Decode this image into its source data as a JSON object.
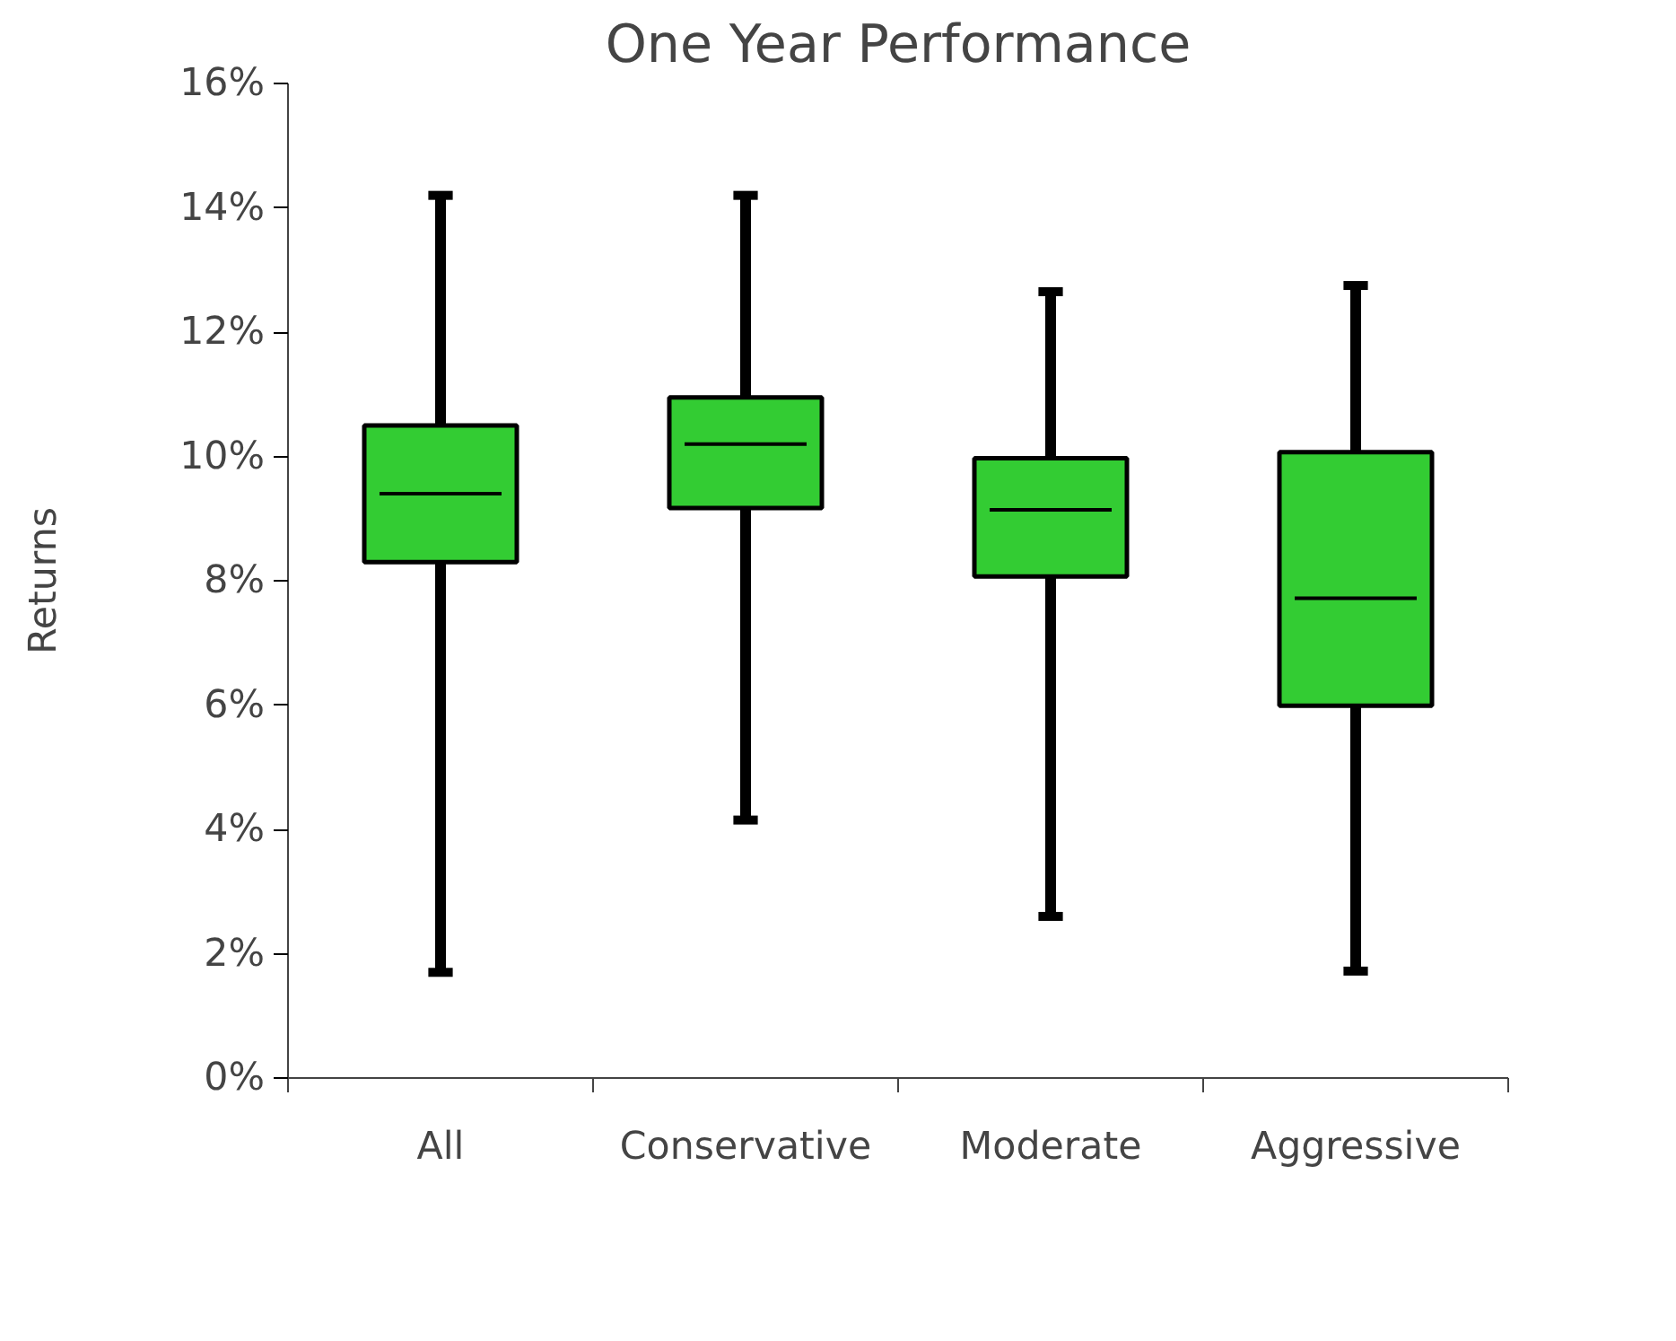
{
  "chart_data": {
    "type": "box",
    "title": "One Year Performance",
    "ylabel": "Returns",
    "categories": [
      "All",
      "Conservative",
      "Moderate",
      "Aggressive"
    ],
    "series": [
      {
        "color": "#33cc33",
        "boxes": [
          {
            "low": 1.7,
            "q1": 8.3,
            "median": 9.4,
            "q3": 10.5,
            "high": 14.2
          },
          {
            "low": 4.15,
            "q1": 9.17,
            "median": 10.2,
            "q3": 10.95,
            "high": 14.2
          },
          {
            "low": 2.6,
            "q1": 8.07,
            "median": 9.14,
            "q3": 9.97,
            "high": 12.65
          },
          {
            "low": 1.72,
            "q1": 5.99,
            "median": 7.72,
            "q3": 10.07,
            "high": 12.75
          }
        ]
      }
    ],
    "ylim": [
      0,
      16
    ],
    "yticks": [
      {
        "value": 0,
        "label": "0%"
      },
      {
        "value": 2,
        "label": "2%"
      },
      {
        "value": 4,
        "label": "4%"
      },
      {
        "value": 6,
        "label": "6%"
      },
      {
        "value": 8,
        "label": "8%"
      },
      {
        "value": 10,
        "label": "10%"
      },
      {
        "value": 12,
        "label": "12%"
      },
      {
        "value": 14,
        "label": "14%"
      },
      {
        "value": 16,
        "label": "16%"
      }
    ],
    "grid": false
  }
}
